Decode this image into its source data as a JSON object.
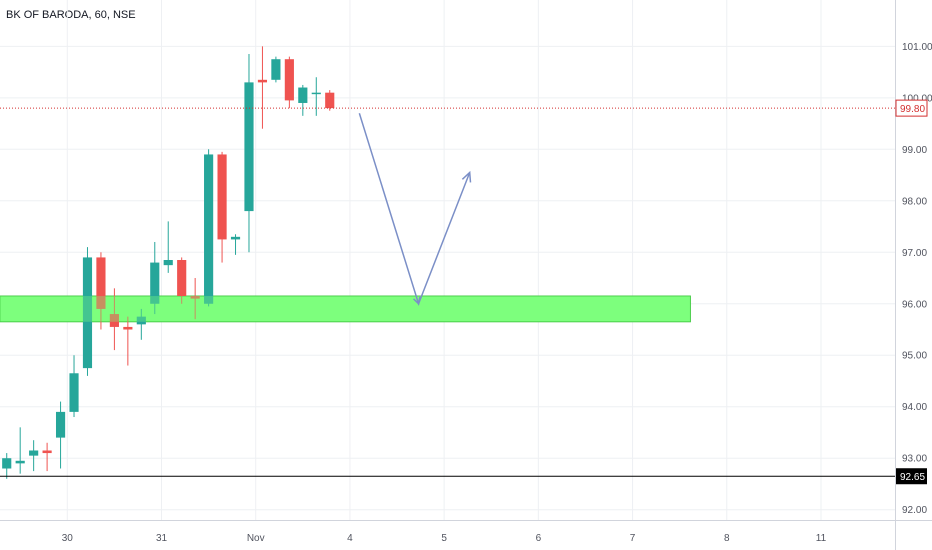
{
  "header": {
    "symbol_title": "BK OF BARODA, 60, NSE"
  },
  "colors": {
    "up": "#26a69a",
    "down": "#ef5350",
    "zone_fill": "#7dff7d",
    "zone_border": "#3cc43c",
    "arrow": "#7b8fc7",
    "price_line": "#d32f2f",
    "hline": "#000000",
    "grid": "#eef0f3"
  },
  "chart_data": {
    "type": "candlestick",
    "title": "BK OF BARODA, 60, NSE",
    "ylim": [
      91.8,
      101.9
    ],
    "xlim": [
      -0.5,
      66
    ],
    "y_ticks": [
      "92.00",
      "93.00",
      "94.00",
      "95.00",
      "96.00",
      "97.00",
      "98.00",
      "99.00",
      "100.00",
      "101.00"
    ],
    "x_ticks": [
      {
        "label": "30",
        "x": 4.5
      },
      {
        "label": "31",
        "x": 11.5
      },
      {
        "label": "Nov",
        "x": 18.5
      },
      {
        "label": "4",
        "x": 25.5
      },
      {
        "label": "5",
        "x": 32.5
      },
      {
        "label": "6",
        "x": 39.5
      },
      {
        "label": "7",
        "x": 46.5
      },
      {
        "label": "8",
        "x": 53.5
      },
      {
        "label": "11",
        "x": 60.5
      }
    ],
    "candles": [
      {
        "o": 92.8,
        "h": 93.1,
        "l": 92.6,
        "c": 93.0
      },
      {
        "o": 92.9,
        "h": 93.6,
        "l": 92.7,
        "c": 92.95
      },
      {
        "o": 93.05,
        "h": 93.35,
        "l": 92.75,
        "c": 93.15
      },
      {
        "o": 93.15,
        "h": 93.3,
        "l": 92.75,
        "c": 93.1
      },
      {
        "o": 93.4,
        "h": 94.1,
        "l": 92.8,
        "c": 93.9
      },
      {
        "o": 93.9,
        "h": 95.0,
        "l": 93.8,
        "c": 94.65
      },
      {
        "o": 94.75,
        "h": 97.1,
        "l": 94.6,
        "c": 96.9
      },
      {
        "o": 96.9,
        "h": 97.0,
        "l": 95.5,
        "c": 95.9
      },
      {
        "o": 95.8,
        "h": 96.3,
        "l": 95.1,
        "c": 95.55
      },
      {
        "o": 95.55,
        "h": 95.75,
        "l": 94.8,
        "c": 95.5
      },
      {
        "o": 95.6,
        "h": 95.9,
        "l": 95.3,
        "c": 95.75
      },
      {
        "o": 96.0,
        "h": 97.2,
        "l": 95.8,
        "c": 96.8
      },
      {
        "o": 96.75,
        "h": 97.6,
        "l": 96.6,
        "c": 96.85
      },
      {
        "o": 96.85,
        "h": 96.9,
        "l": 96.0,
        "c": 96.15
      },
      {
        "o": 96.15,
        "h": 96.5,
        "l": 95.7,
        "c": 96.1
      },
      {
        "o": 96.0,
        "h": 99.0,
        "l": 95.95,
        "c": 98.9
      },
      {
        "o": 98.9,
        "h": 98.95,
        "l": 96.8,
        "c": 97.25
      },
      {
        "o": 97.25,
        "h": 97.35,
        "l": 96.95,
        "c": 97.3
      },
      {
        "o": 97.8,
        "h": 100.85,
        "l": 97.0,
        "c": 100.3
      },
      {
        "o": 100.35,
        "h": 101.0,
        "l": 99.4,
        "c": 100.3
      },
      {
        "o": 100.35,
        "h": 100.8,
        "l": 100.3,
        "c": 100.75
      },
      {
        "o": 100.75,
        "h": 100.8,
        "l": 99.8,
        "c": 99.95
      },
      {
        "o": 99.9,
        "h": 100.25,
        "l": 99.65,
        "c": 100.2
      },
      {
        "o": 100.1,
        "h": 100.4,
        "l": 99.65,
        "c": 100.1
      },
      {
        "o": 100.1,
        "h": 100.15,
        "l": 99.75,
        "c": 99.8
      }
    ],
    "zone": {
      "x_start": -0.5,
      "x_end": 50.8,
      "y_low": 95.65,
      "y_high": 96.15
    },
    "arrow": [
      {
        "x": 26.2,
        "y": 99.7
      },
      {
        "x": 30.6,
        "y": 96.0
      },
      {
        "x": 34.4,
        "y": 98.55
      }
    ],
    "price_line": {
      "value": 99.8,
      "label": "99.80"
    },
    "horizontal_line": {
      "value": 92.65,
      "label": "92.65"
    },
    "grid": true
  }
}
